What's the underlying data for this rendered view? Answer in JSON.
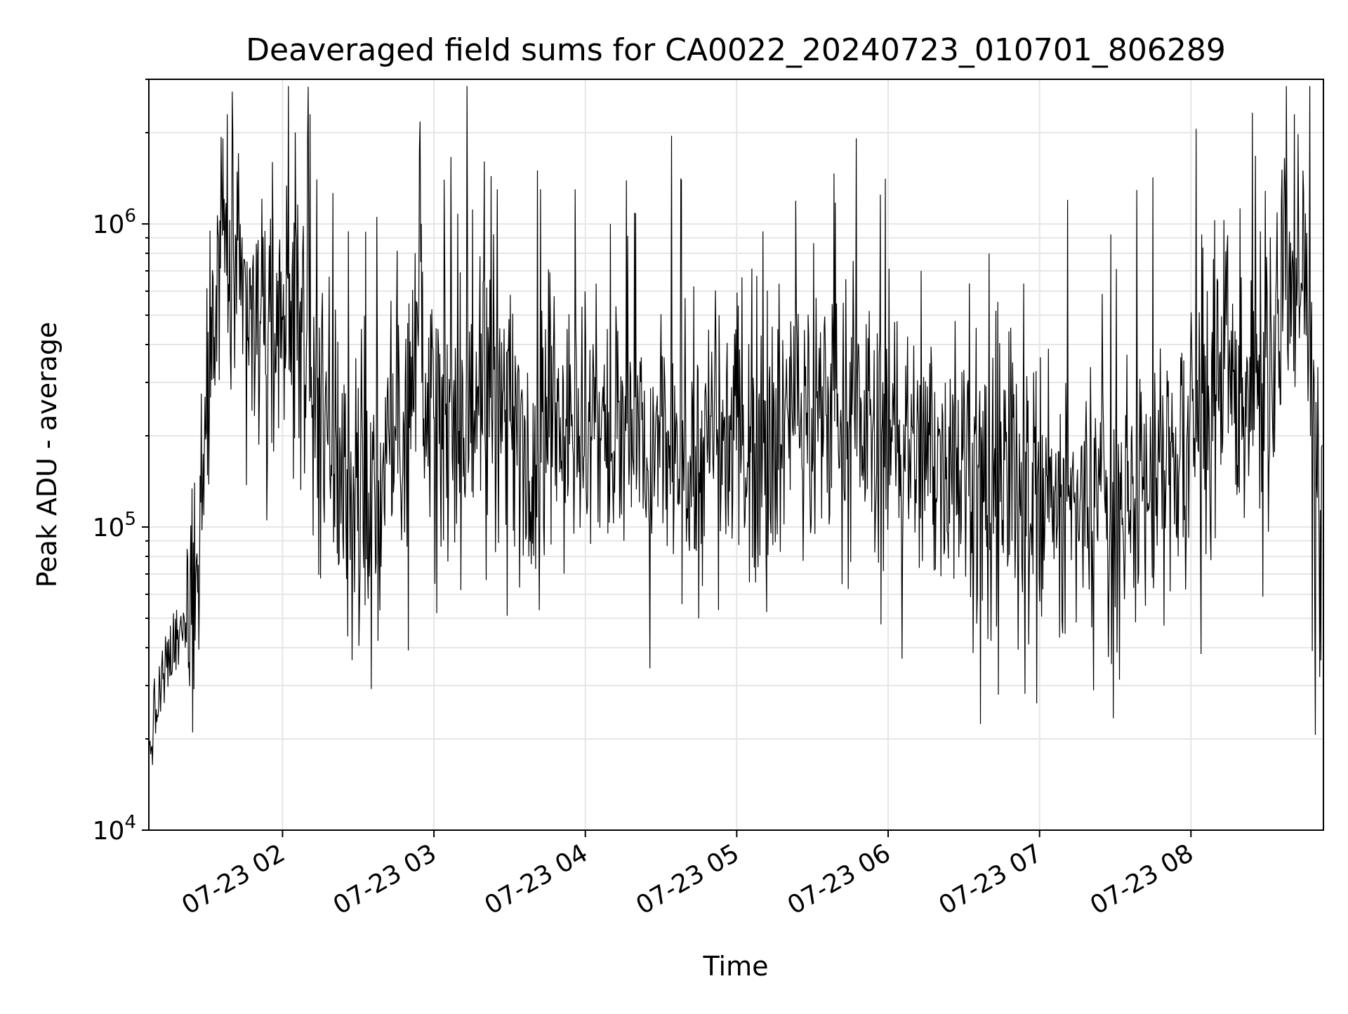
{
  "chart_data": {
    "type": "line",
    "title": "Deaveraged field sums for CA0022_20240723_010701_806289",
    "xlabel": "Time",
    "ylabel": "Peak ADU - average",
    "yscale": "log",
    "ylim": [
      10000,
      3000000
    ],
    "xlim": [
      "2024-07-23 01:07:01",
      "2024-07-23 08:52:30"
    ],
    "grid": true,
    "x_ticks": [
      {
        "value": "2024-07-23 02:00",
        "label": "07-23 02"
      },
      {
        "value": "2024-07-23 03:00",
        "label": "07-23 03"
      },
      {
        "value": "2024-07-23 04:00",
        "label": "07-23 04"
      },
      {
        "value": "2024-07-23 05:00",
        "label": "07-23 05"
      },
      {
        "value": "2024-07-23 06:00",
        "label": "07-23 06"
      },
      {
        "value": "2024-07-23 07:00",
        "label": "07-23 07"
      },
      {
        "value": "2024-07-23 08:00",
        "label": "07-23 08"
      }
    ],
    "y_ticks": [
      {
        "value": 10000,
        "base": "10",
        "exp": "4"
      },
      {
        "value": 100000,
        "base": "10",
        "exp": "5"
      },
      {
        "value": 1000000,
        "base": "10",
        "exp": "6"
      }
    ],
    "series_color": "#000000",
    "grid_color": "#e6e6e6",
    "x": [
      "2024-07-23 01:07",
      "2024-07-23 01:12",
      "2024-07-23 01:17",
      "2024-07-23 01:21",
      "2024-07-23 01:24",
      "2024-07-23 01:27",
      "2024-07-23 01:31",
      "2024-07-23 01:35",
      "2024-07-23 01:40",
      "2024-07-23 01:45",
      "2024-07-23 01:50",
      "2024-07-23 01:55",
      "2024-07-23 02:00",
      "2024-07-23 02:05",
      "2024-07-23 02:10",
      "2024-07-23 02:15",
      "2024-07-23 02:20",
      "2024-07-23 02:25",
      "2024-07-23 02:30",
      "2024-07-23 02:35",
      "2024-07-23 02:40",
      "2024-07-23 02:45",
      "2024-07-23 02:50",
      "2024-07-23 02:55",
      "2024-07-23 03:00",
      "2024-07-23 03:10",
      "2024-07-23 03:20",
      "2024-07-23 03:30",
      "2024-07-23 03:40",
      "2024-07-23 03:50",
      "2024-07-23 04:00",
      "2024-07-23 04:10",
      "2024-07-23 04:20",
      "2024-07-23 04:30",
      "2024-07-23 04:40",
      "2024-07-23 04:50",
      "2024-07-23 05:00",
      "2024-07-23 05:10",
      "2024-07-23 05:20",
      "2024-07-23 05:30",
      "2024-07-23 05:40",
      "2024-07-23 05:50",
      "2024-07-23 06:00",
      "2024-07-23 06:10",
      "2024-07-23 06:20",
      "2024-07-23 06:30",
      "2024-07-23 06:40",
      "2024-07-23 06:50",
      "2024-07-23 07:00",
      "2024-07-23 07:10",
      "2024-07-23 07:20",
      "2024-07-23 07:30",
      "2024-07-23 07:40",
      "2024-07-23 07:50",
      "2024-07-23 08:00",
      "2024-07-23 08:10",
      "2024-07-23 08:20",
      "2024-07-23 08:30",
      "2024-07-23 08:40",
      "2024-07-23 08:45",
      "2024-07-23 08:50",
      "2024-07-23 08:52"
    ],
    "y": [
      18000,
      30000,
      40000,
      45000,
      60000,
      100000,
      350000,
      900000,
      700000,
      500000,
      500000,
      350000,
      400000,
      600000,
      350000,
      250000,
      200000,
      150000,
      120000,
      100000,
      150000,
      200000,
      250000,
      500000,
      200000,
      200000,
      300000,
      200000,
      200000,
      250000,
      200000,
      200000,
      180000,
      180000,
      170000,
      180000,
      200000,
      200000,
      220000,
      250000,
      250000,
      220000,
      200000,
      180000,
      180000,
      170000,
      150000,
      130000,
      120000,
      110000,
      110000,
      110000,
      130000,
      160000,
      200000,
      250000,
      280000,
      300000,
      600000,
      400000,
      200000,
      100000
    ],
    "peaks": [
      {
        "x": "2024-07-23 01:38",
        "y": 2300000
      },
      {
        "x": "2024-07-23 01:56",
        "y": 1600000
      },
      {
        "x": "2024-07-23 02:11",
        "y": 2300000
      },
      {
        "x": "2024-07-23 02:10",
        "y": 1900000
      },
      {
        "x": "2024-07-23 03:41",
        "y": 1500000
      },
      {
        "x": "2024-07-23 03:04",
        "y": 1400000
      },
      {
        "x": "2024-07-23 03:25",
        "y": 1300000
      },
      {
        "x": "2024-07-23 03:56",
        "y": 1300000
      },
      {
        "x": "2024-07-23 04:10",
        "y": 1000000
      },
      {
        "x": "2024-07-23 07:11",
        "y": 1200000
      },
      {
        "x": "2024-07-23 08:41",
        "y": 2300000
      },
      {
        "x": "2024-07-23 08:37",
        "y": 1650000
      }
    ],
    "dips": [
      {
        "x": "2024-07-23 03:01",
        "y": 52000
      },
      {
        "x": "2024-07-23 03:29",
        "y": 51000
      },
      {
        "x": "2024-07-23 04:45",
        "y": 50000
      },
      {
        "x": "2024-07-23 06:43",
        "y": 47000
      },
      {
        "x": "2024-07-23 06:35",
        "y": 48000
      },
      {
        "x": "2024-07-23 07:09",
        "y": 49000
      },
      {
        "x": "2024-07-23 08:48",
        "y": 39000
      },
      {
        "x": "2024-07-23 08:51",
        "y": 32000
      },
      {
        "x": "2024-07-23 02:34",
        "y": 58000
      }
    ]
  }
}
